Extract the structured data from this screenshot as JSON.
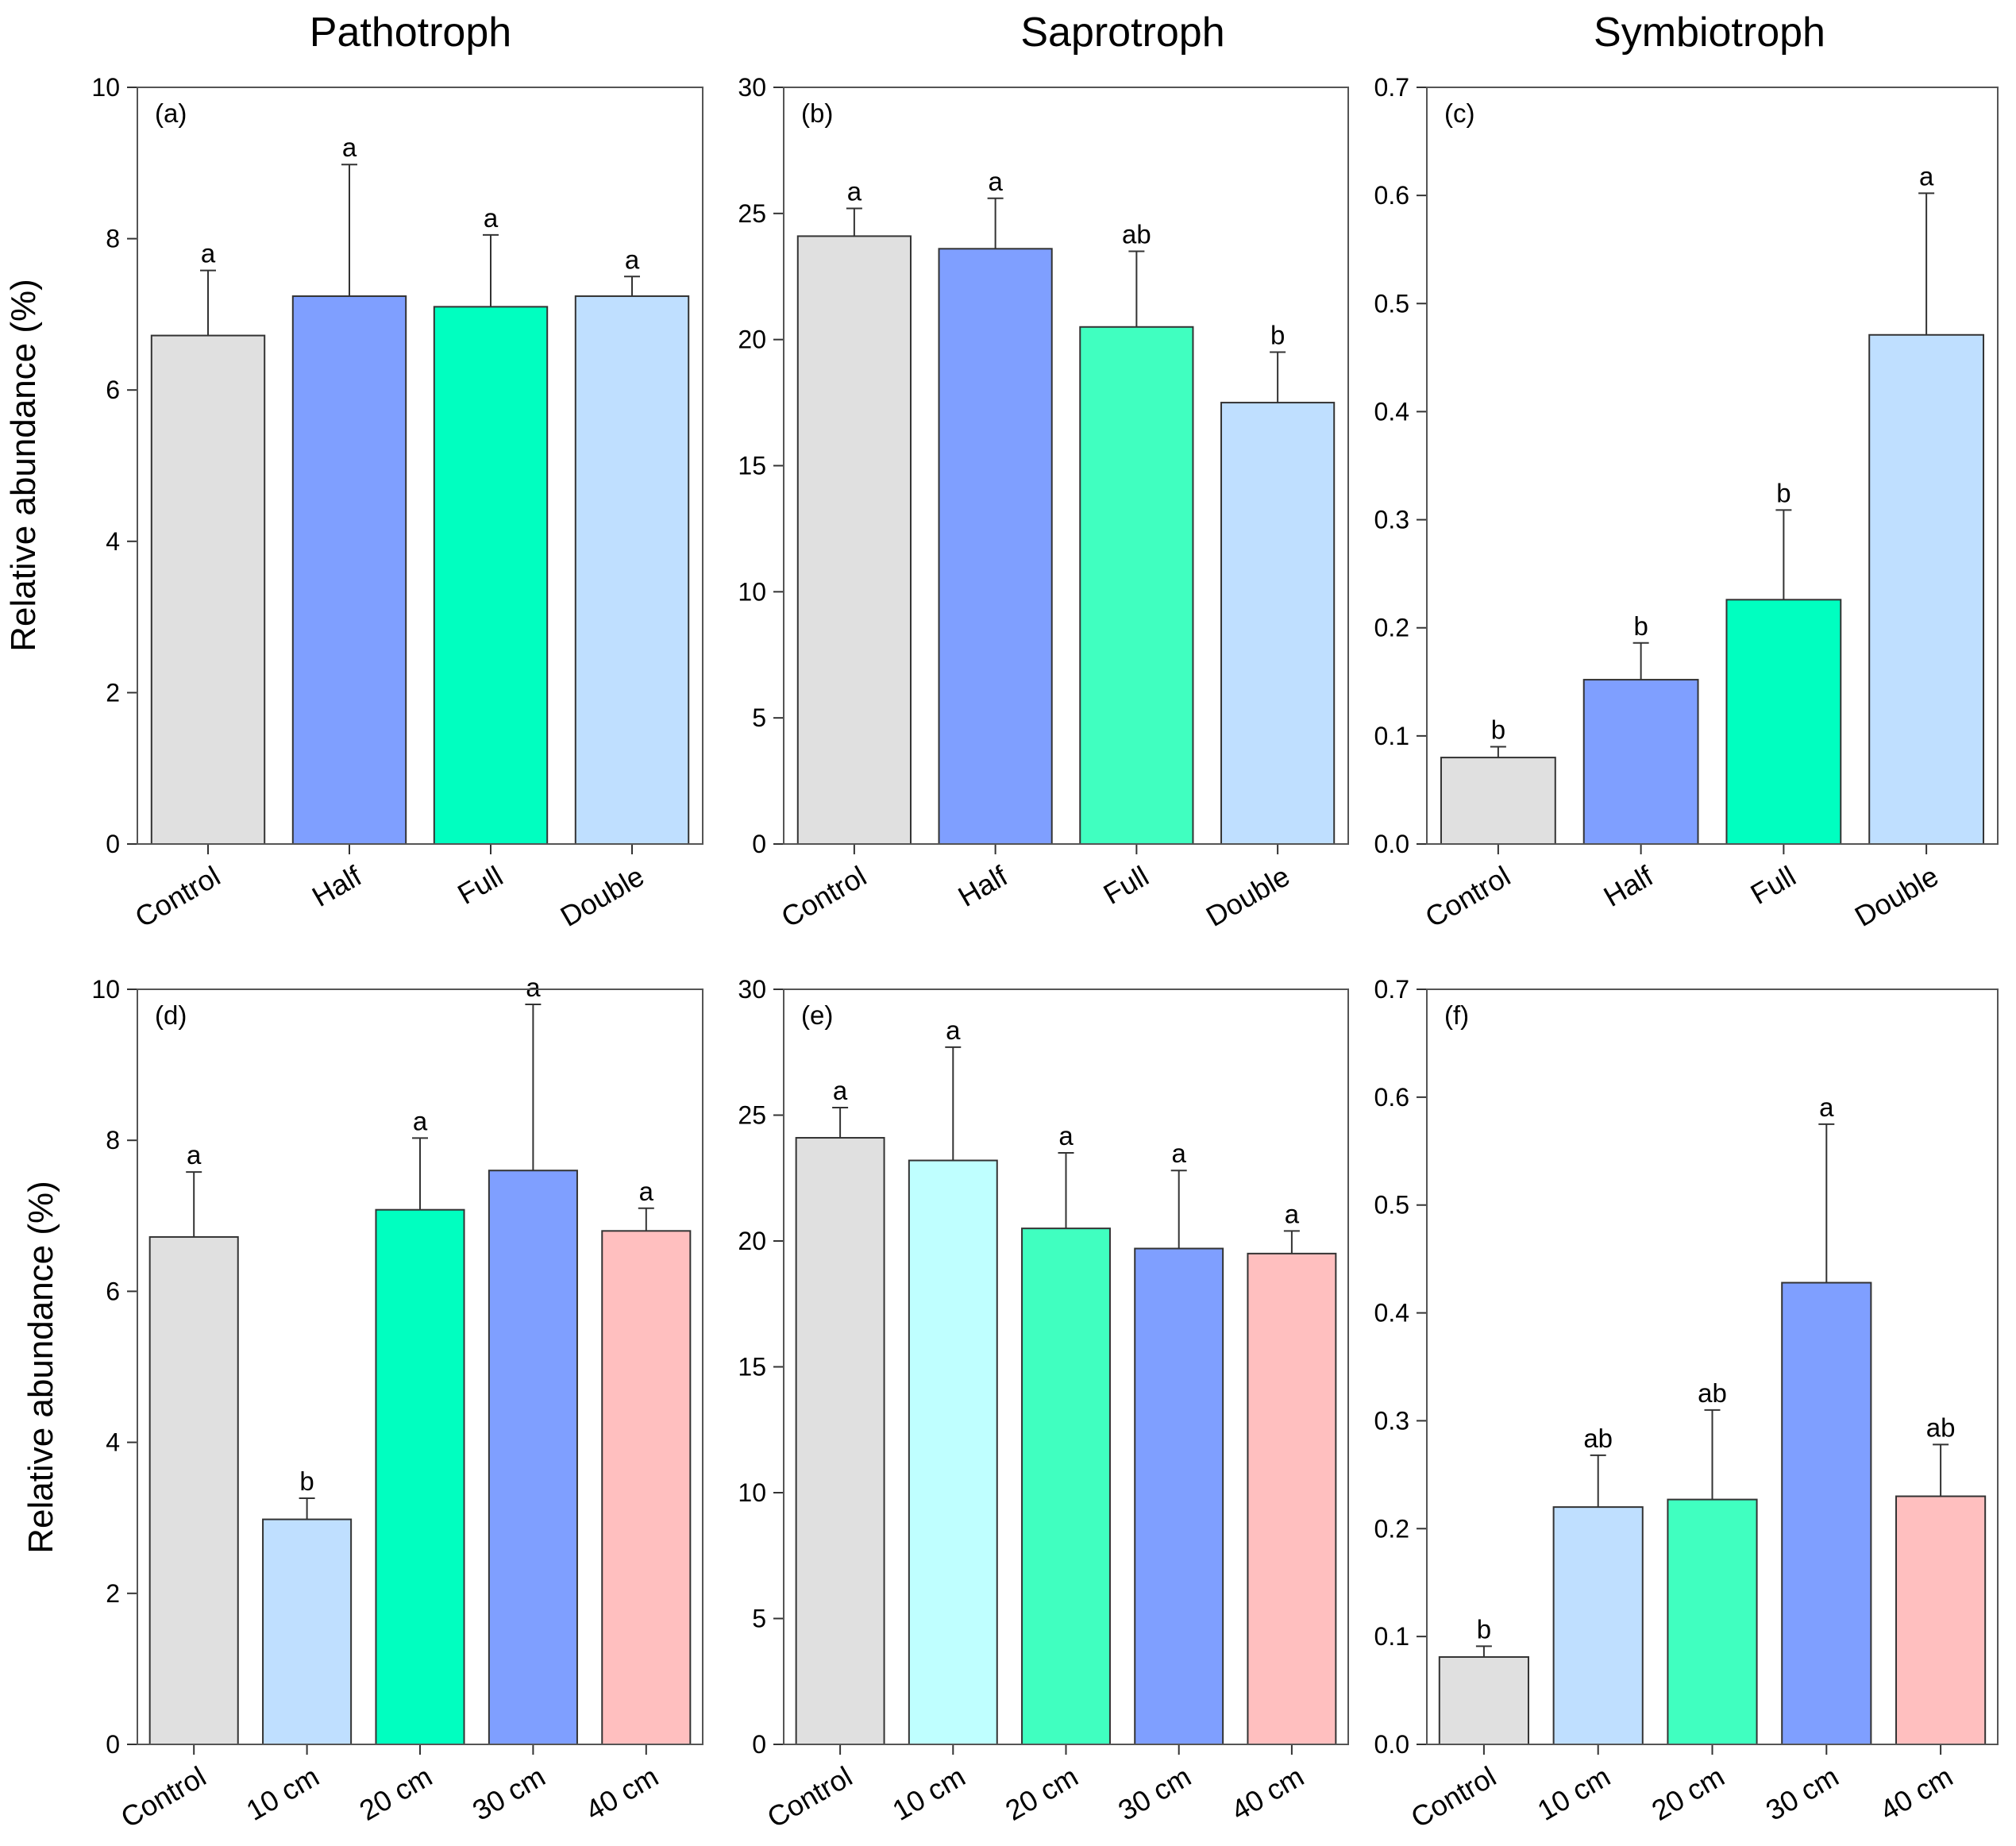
{
  "figure": {
    "column_titles": [
      "Pathotroph",
      "Saprotroph",
      "Symbiotroph"
    ],
    "ylabel": "Relative abundance (%)"
  },
  "chart_data": [
    {
      "panel": "(a)",
      "type": "bar",
      "title": "Pathotroph",
      "categories": [
        "Control",
        "Half",
        "Full",
        "Double"
      ],
      "values": [
        6.72,
        7.24,
        7.1,
        7.24
      ],
      "errors": [
        0.86,
        1.74,
        0.95,
        0.26
      ],
      "letters": [
        "a",
        "a",
        "a",
        "a"
      ],
      "colors": [
        "#e0e0e0",
        "#7f9fff",
        "#00ffc0",
        "#bfdfff"
      ],
      "ylim": [
        0,
        10
      ],
      "yticks": [
        0,
        2,
        4,
        6,
        8,
        10
      ],
      "tick_decimals": 0,
      "ylabel": "Relative abundance (%)"
    },
    {
      "panel": "(b)",
      "type": "bar",
      "title": "Saprotroph",
      "categories": [
        "Control",
        "Half",
        "Full",
        "Double"
      ],
      "values": [
        24.1,
        23.6,
        20.5,
        17.5
      ],
      "errors": [
        1.1,
        2.0,
        3.0,
        2.0
      ],
      "letters": [
        "a",
        "a",
        "ab",
        "b"
      ],
      "colors": [
        "#e0e0e0",
        "#7f9fff",
        "#40ffc0",
        "#bfdfff"
      ],
      "ylim": [
        0,
        30
      ],
      "yticks": [
        0,
        5,
        10,
        15,
        20,
        25,
        30
      ],
      "tick_decimals": 0,
      "ylabel": ""
    },
    {
      "panel": "(c)",
      "type": "bar",
      "title": "Symbiotroph",
      "categories": [
        "Control",
        "Half",
        "Full",
        "Double"
      ],
      "values": [
        0.08,
        0.152,
        0.226,
        0.471
      ],
      "errors": [
        0.01,
        0.034,
        0.083,
        0.131
      ],
      "letters": [
        "b",
        "b",
        "b",
        "a"
      ],
      "colors": [
        "#e0e0e0",
        "#7f9fff",
        "#00ffc0",
        "#bfdfff"
      ],
      "ylim": [
        0,
        0.7
      ],
      "yticks": [
        0.0,
        0.1,
        0.2,
        0.3,
        0.4,
        0.5,
        0.6,
        0.7
      ],
      "tick_decimals": 1,
      "ylabel": ""
    },
    {
      "panel": "(d)",
      "type": "bar",
      "title": "",
      "categories": [
        "Control",
        "10 cm",
        "20 cm",
        "30 cm",
        "40 cm"
      ],
      "values": [
        6.72,
        2.98,
        7.08,
        7.6,
        6.8
      ],
      "errors": [
        0.86,
        0.28,
        0.95,
        2.2,
        0.3
      ],
      "letters": [
        "a",
        "b",
        "a",
        "a",
        "a"
      ],
      "colors": [
        "#e0e0e0",
        "#bfdfff",
        "#00ffc0",
        "#7f9fff",
        "#ffbfbf"
      ],
      "ylim": [
        0,
        10
      ],
      "yticks": [
        0,
        2,
        4,
        6,
        8,
        10
      ],
      "tick_decimals": 0,
      "ylabel": "Relative abundance (%)"
    },
    {
      "panel": "(e)",
      "type": "bar",
      "title": "",
      "categories": [
        "Control",
        "10 cm",
        "20 cm",
        "30 cm",
        "40 cm"
      ],
      "values": [
        24.1,
        23.2,
        20.5,
        19.7,
        19.5
      ],
      "errors": [
        1.2,
        4.5,
        3.0,
        3.1,
        0.9
      ],
      "letters": [
        "a",
        "a",
        "a",
        "a",
        "a"
      ],
      "colors": [
        "#e0e0e0",
        "#bfffff",
        "#40ffc0",
        "#7f9fff",
        "#ffbfbf"
      ],
      "ylim": [
        0,
        30
      ],
      "yticks": [
        0,
        5,
        10,
        15,
        20,
        25,
        30
      ],
      "tick_decimals": 0,
      "ylabel": ""
    },
    {
      "panel": "(f)",
      "type": "bar",
      "title": "",
      "categories": [
        "Control",
        "10 cm",
        "20 cm",
        "30 cm",
        "40 cm"
      ],
      "values": [
        0.081,
        0.22,
        0.227,
        0.428,
        0.23
      ],
      "errors": [
        0.01,
        0.048,
        0.083,
        0.147,
        0.048
      ],
      "letters": [
        "b",
        "ab",
        "ab",
        "a",
        "ab"
      ],
      "colors": [
        "#e0e0e0",
        "#bfdfff",
        "#40ffc0",
        "#7f9fff",
        "#ffbfbf"
      ],
      "ylim": [
        0,
        0.7
      ],
      "yticks": [
        0.0,
        0.1,
        0.2,
        0.3,
        0.4,
        0.5,
        0.6,
        0.7
      ],
      "tick_decimals": 1,
      "ylabel": ""
    }
  ]
}
